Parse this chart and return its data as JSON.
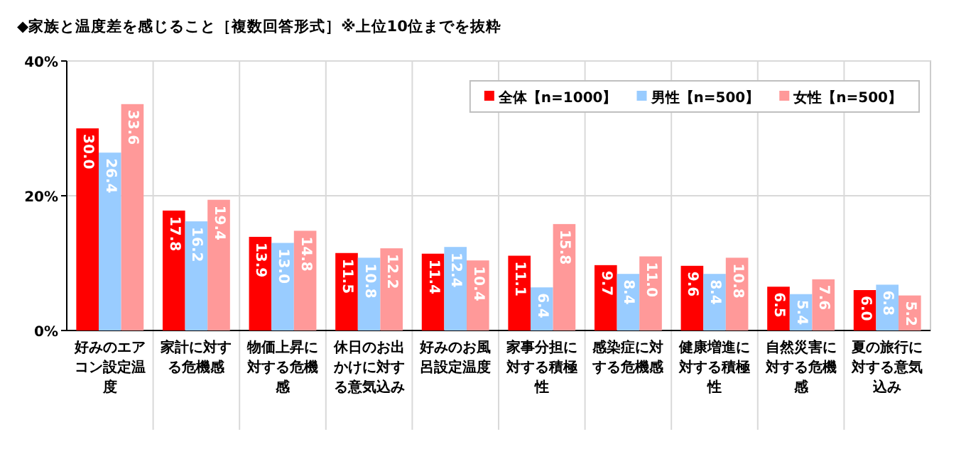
{
  "chart_data": {
    "type": "bar",
    "title": "◆家族と温度差を感じること［複数回答形式］※上位10位までを抜粋",
    "categories": [
      "好みのエアコン設定温度",
      "家計に対する危機感",
      "物価上昇に対する危機感",
      "休日のお出かけに対する意気込み",
      "好みのお風呂設定温度",
      "家事分担に対する積極性",
      "感染症に対する危機感",
      "健康増進に対する積極性",
      "自然災害に対する危機感",
      "夏の旅行に対する意気込み"
    ],
    "series": [
      {
        "name": "全体【n=1000】",
        "color": "#ff0000",
        "values": [
          30.0,
          17.8,
          13.9,
          11.5,
          11.4,
          11.1,
          9.7,
          9.6,
          6.5,
          6.0
        ],
        "value_labels": [
          "30.0",
          "17.8",
          "13.9",
          "11.5",
          "11.4",
          "11.1",
          "9.7",
          "9.6",
          "6.5",
          "6.0"
        ]
      },
      {
        "name": "男性【n=500】",
        "color": "#99ccff",
        "values": [
          26.4,
          16.2,
          13.0,
          10.8,
          12.4,
          6.4,
          8.4,
          8.4,
          5.4,
          6.8
        ],
        "value_labels": [
          "26.4",
          "16.2",
          "13.0",
          "10.8",
          "12.4",
          "6.4",
          "8.4",
          "8.4",
          "5.4",
          "6.8"
        ]
      },
      {
        "name": "女性【n=500】",
        "color": "#ff9999",
        "values": [
          33.6,
          19.4,
          14.8,
          12.2,
          10.4,
          15.8,
          11.0,
          10.8,
          7.6,
          5.2
        ],
        "value_labels": [
          "33.6",
          "19.4",
          "14.8",
          "12.2",
          "10.4",
          "15.8",
          "11.0",
          "10.8",
          "7.6",
          "5.2"
        ]
      }
    ],
    "ylim": [
      0,
      40
    ],
    "yticks": [
      {
        "value": 0,
        "label": "0%"
      },
      {
        "value": 20,
        "label": "20%"
      },
      {
        "value": 40,
        "label": "40%"
      }
    ],
    "grid": true,
    "legend": "top right"
  }
}
